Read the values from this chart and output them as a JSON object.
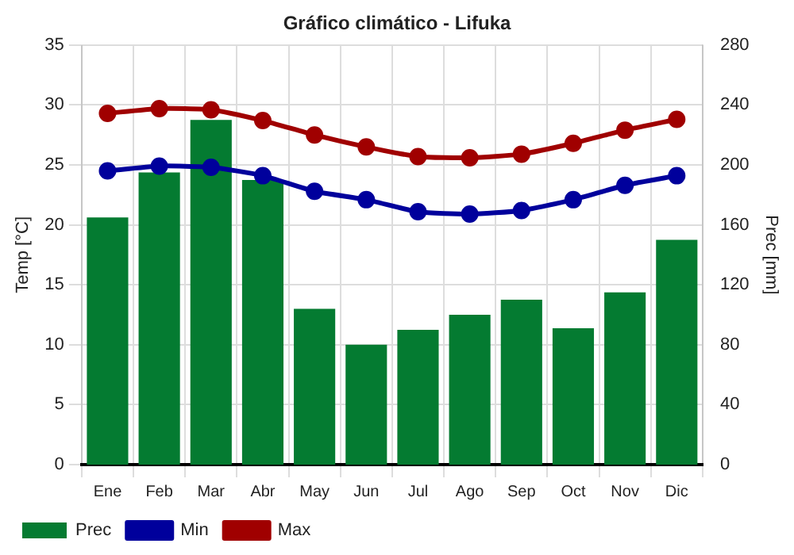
{
  "chart_data": {
    "type": "bar",
    "title": "Gráfico climático - Lifuka",
    "ylabel": "Temp [°C]",
    "y2label": "Prec [mm]",
    "categories": [
      "Ene",
      "Feb",
      "Mar",
      "Abr",
      "May",
      "Jun",
      "Jul",
      "Ago",
      "Sep",
      "Oct",
      "Nov",
      "Dic"
    ],
    "series": [
      {
        "name": "Prec",
        "axis": "y2",
        "color": "#047b31",
        "values": [
          165,
          195,
          230,
          190,
          104,
          80,
          90,
          100,
          110,
          91,
          115,
          150
        ]
      },
      {
        "name": "Min",
        "type": "line",
        "axis": "y",
        "color": "#00009c",
        "values": [
          24.5,
          24.9,
          24.8,
          24.1,
          22.8,
          22.1,
          21.1,
          20.9,
          21.2,
          22.1,
          23.3,
          24.1
        ]
      },
      {
        "name": "Max",
        "type": "line",
        "axis": "y",
        "color": "#a00000",
        "values": [
          29.3,
          29.7,
          29.6,
          28.7,
          27.5,
          26.5,
          25.7,
          25.6,
          25.9,
          26.8,
          27.9,
          28.8
        ]
      }
    ],
    "ylim": [
      0,
      35
    ],
    "yticks": [
      0,
      5,
      10,
      15,
      20,
      25,
      30,
      35
    ],
    "y2lim": [
      0,
      280
    ],
    "y2ticks": [
      0,
      40,
      80,
      120,
      160,
      200,
      240,
      280
    ],
    "grid": true,
    "legend": "bottom left",
    "marker": "circle"
  }
}
